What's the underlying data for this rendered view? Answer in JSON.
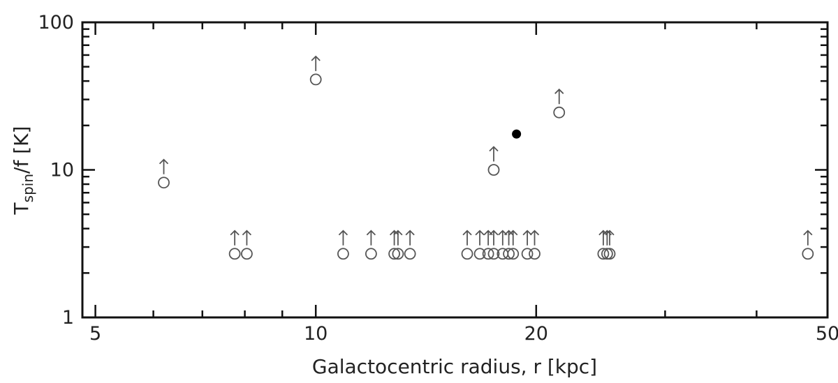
{
  "chart_data": {
    "type": "scatter",
    "title": "",
    "xlabel": "Galactocentric radius, r  [kpc]",
    "ylabel": {
      "main": "T",
      "sub": "spin",
      "rest": "/f  [K]"
    },
    "x_scale": "log",
    "y_scale": "log",
    "xlim": [
      4.8,
      50
    ],
    "ylim": [
      1,
      100
    ],
    "x_ticks": [
      {
        "value": 5,
        "label": "5"
      },
      {
        "value": 10,
        "label": "10"
      },
      {
        "value": 20,
        "label": "20"
      },
      {
        "value": 50,
        "label": "50"
      }
    ],
    "y_ticks": [
      {
        "value": 1,
        "label": "1"
      },
      {
        "value": 10,
        "label": "10"
      },
      {
        "value": 100,
        "label": "100"
      }
    ],
    "grid": false,
    "legend": "none",
    "series": [
      {
        "marker": "open-circle-with-up-arrow",
        "meaning": "lower limit",
        "color": "#555555",
        "points": [
          {
            "x": 6.2,
            "y": 8.2
          },
          {
            "x": 10.0,
            "y": 41
          },
          {
            "x": 17.5,
            "y": 10
          },
          {
            "x": 21.5,
            "y": 24.5
          },
          {
            "x": 7.75,
            "y": 2.7
          },
          {
            "x": 8.05,
            "y": 2.7
          },
          {
            "x": 10.9,
            "y": 2.7
          },
          {
            "x": 11.9,
            "y": 2.7
          },
          {
            "x": 12.8,
            "y": 2.7
          },
          {
            "x": 12.95,
            "y": 2.7
          },
          {
            "x": 13.45,
            "y": 2.7
          },
          {
            "x": 16.1,
            "y": 2.7
          },
          {
            "x": 16.75,
            "y": 2.7
          },
          {
            "x": 17.2,
            "y": 2.7
          },
          {
            "x": 17.5,
            "y": 2.7
          },
          {
            "x": 18.0,
            "y": 2.7
          },
          {
            "x": 18.35,
            "y": 2.7
          },
          {
            "x": 18.6,
            "y": 2.7
          },
          {
            "x": 19.45,
            "y": 2.7
          },
          {
            "x": 19.9,
            "y": 2.7
          },
          {
            "x": 24.7,
            "y": 2.7
          },
          {
            "x": 25.0,
            "y": 2.7
          },
          {
            "x": 25.2,
            "y": 2.7
          },
          {
            "x": 47.0,
            "y": 2.7
          }
        ]
      },
      {
        "marker": "filled-circle",
        "meaning": "detection",
        "color": "#000000",
        "points": [
          {
            "x": 18.8,
            "y": 17.5
          }
        ]
      }
    ]
  }
}
